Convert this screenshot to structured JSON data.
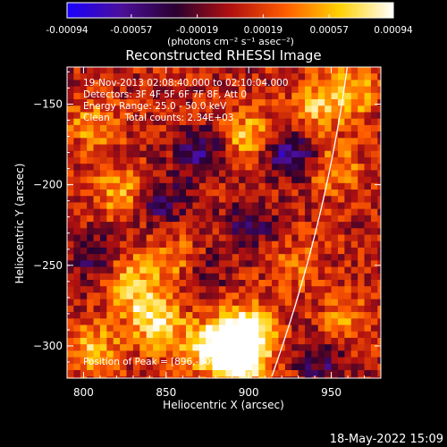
{
  "chart_data": {
    "type": "heatmap",
    "title": "Reconstructed RHESSI Image",
    "xlabel": "Heliocentric X (arcsec)",
    "ylabel": "Heliocentric Y (arcsec)",
    "xlim": [
      790,
      980
    ],
    "ylim": [
      -320,
      -127
    ],
    "x_ticks": [
      800,
      850,
      900,
      950
    ],
    "y_ticks": [
      -150,
      -200,
      -250,
      -300
    ],
    "colorbar": {
      "range": [
        -0.00094,
        0.00094
      ],
      "ticks": [
        "-0.00094",
        "-0.00057",
        "-0.00019",
        "0.00019",
        "0.00057",
        "0.00094"
      ],
      "unit_label": "(photons cm⁻² s⁻¹ asec⁻²)",
      "colors": [
        "#1a00ff",
        "#4b0f9a",
        "#2a0030",
        "#b01010",
        "#ff5a00",
        "#ffd000",
        "#ffffff"
      ]
    },
    "annotations": [
      "19-Nov-2013 02:08:40.000 to 02:10:04.000",
      "Detectors: 3F 4F 5F 6F 7F 8F, Att 0",
      "Energy Range: 25.0 - 50.0 keV",
      "Clean     Total counts: 2.34E+03"
    ],
    "peak_label": "Position of Peak = [896,-309]",
    "peak": [
      896,
      -309
    ],
    "limb_color": "#ffffff",
    "sources": [
      {
        "x": 896,
        "y": -309,
        "intensity": 1.0
      },
      {
        "x": 889,
        "y": -295,
        "intensity": 0.75
      },
      {
        "x": 878,
        "y": -302,
        "intensity": 0.7
      },
      {
        "x": 903,
        "y": -288,
        "intensity": 0.6
      },
      {
        "x": 838,
        "y": -276,
        "intensity": 0.55
      },
      {
        "x": 848,
        "y": -290,
        "intensity": 0.55
      },
      {
        "x": 828,
        "y": -258,
        "intensity": 0.5
      },
      {
        "x": 806,
        "y": -303,
        "intensity": 0.6
      },
      {
        "x": 856,
        "y": -248,
        "intensity": 0.45
      },
      {
        "x": 823,
        "y": -205,
        "intensity": 0.55
      },
      {
        "x": 806,
        "y": -162,
        "intensity": 0.45
      },
      {
        "x": 900,
        "y": -170,
        "intensity": 0.6
      },
      {
        "x": 940,
        "y": -153,
        "intensity": 0.55
      },
      {
        "x": 962,
        "y": -142,
        "intensity": 0.6
      },
      {
        "x": 952,
        "y": -190,
        "intensity": 0.45
      },
      {
        "x": 960,
        "y": -285,
        "intensity": 0.4
      },
      {
        "x": 930,
        "y": -250,
        "intensity": 0.35
      },
      {
        "x": 870,
        "y": -180,
        "intensity": -0.55
      },
      {
        "x": 846,
        "y": -210,
        "intensity": -0.5
      },
      {
        "x": 925,
        "y": -180,
        "intensity": -0.75
      },
      {
        "x": 900,
        "y": -225,
        "intensity": -0.45
      },
      {
        "x": 805,
        "y": -245,
        "intensity": -0.45
      },
      {
        "x": 945,
        "y": -310,
        "intensity": -0.45
      },
      {
        "x": 870,
        "y": -255,
        "intensity": -0.35
      }
    ]
  },
  "footer": {
    "timestamp": "18-May-2022 15:09"
  }
}
